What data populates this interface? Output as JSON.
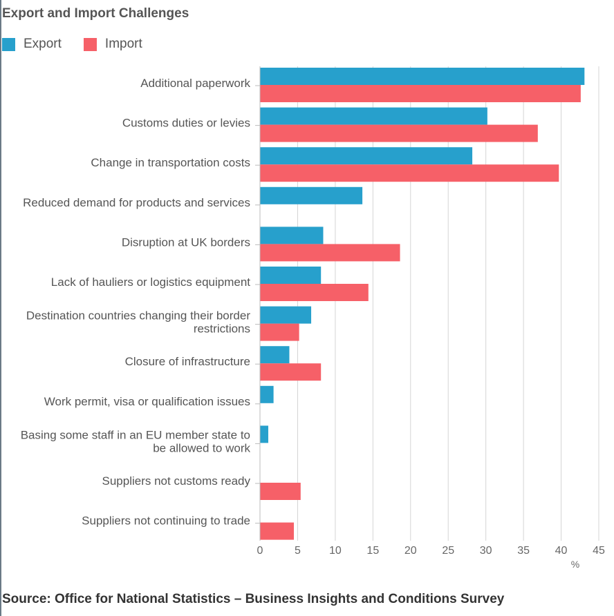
{
  "chart_data": {
    "type": "bar",
    "orientation": "horizontal",
    "title": "Export and Import Challenges",
    "unit": "%",
    "xlim": [
      0,
      45
    ],
    "ticks": [
      0,
      5,
      10,
      15,
      20,
      25,
      30,
      35,
      40,
      45
    ],
    "categories": [
      [
        "Additional paperwork"
      ],
      [
        "Customs duties or levies"
      ],
      [
        "Change in transportation costs"
      ],
      [
        "Reduced demand for products and services"
      ],
      [
        "Disruption at UK borders"
      ],
      [
        "Lack of hauliers or logistics equipment"
      ],
      [
        "Destination countries changing their border",
        "restrictions"
      ],
      [
        "Closure of infrastructure"
      ],
      [
        "Work permit, visa or qualification issues"
      ],
      [
        "Basing some staff in an EU member state to",
        "be allowed to work"
      ],
      [
        "Suppliers not customs ready"
      ],
      [
        "Suppliers not continuing to trade"
      ]
    ],
    "series": [
      {
        "name": "Export",
        "color": "#27a0cc",
        "values": [
          43.1,
          30.2,
          28.2,
          13.6,
          8.4,
          8.1,
          6.8,
          3.9,
          1.8,
          1.1,
          null,
          null
        ]
      },
      {
        "name": "Import",
        "color": "#f66068",
        "values": [
          42.6,
          36.9,
          39.7,
          null,
          18.6,
          14.4,
          5.2,
          8.1,
          null,
          null,
          5.4,
          4.5
        ]
      }
    ]
  },
  "source": "Source: Office for National Statistics – Business Insights and Conditions Survey"
}
